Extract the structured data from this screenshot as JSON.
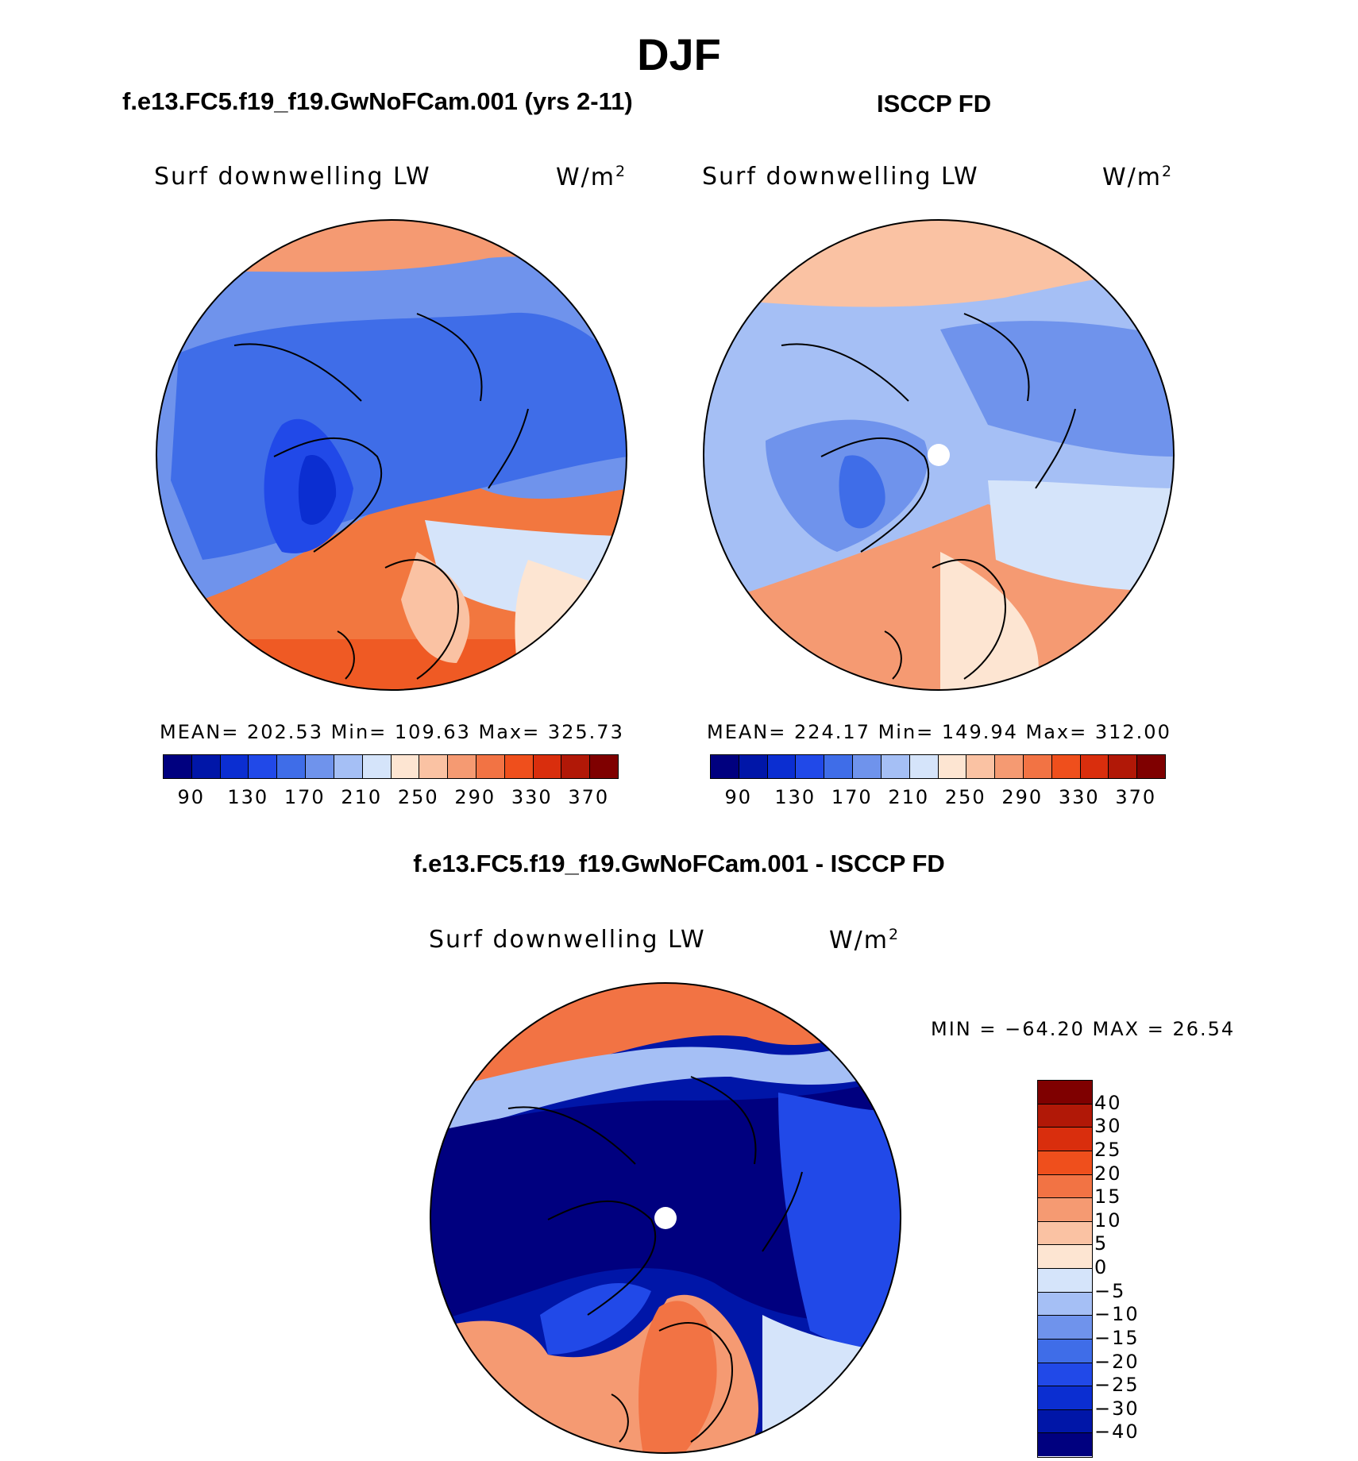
{
  "figure": {
    "season": "DJF",
    "left_title": "f.e13.FC5.f19_f19.GwNoFCam.001 (yrs 2-11)",
    "right_title": "ISCCP FD",
    "diff_title": "f.e13.FC5.f19_f19.GwNoFCam.001 - ISCCP FD"
  },
  "panels": {
    "model": {
      "variable": "Surf downwelling LW",
      "units": "W/m",
      "units_exp": "2",
      "stats": "MEAN= 202.53   Min= 109.63   Max= 325.73"
    },
    "obs": {
      "variable": "Surf downwelling LW",
      "units": "W/m",
      "units_exp": "2",
      "stats": "MEAN= 224.17   Min= 149.94   Max= 312.00"
    },
    "diff": {
      "variable": "Surf downwelling LW",
      "units": "W/m",
      "units_exp": "2",
      "stats": "MIN = −64.20 MAX =   26.54"
    }
  },
  "colorbars": {
    "abs_colors": [
      "#00007f",
      "#0016a8",
      "#0b2ed1",
      "#2149e8",
      "#3f6de8",
      "#6f93ec",
      "#a5bff5",
      "#d5e4fa",
      "#fde5d2",
      "#fac2a3",
      "#f59a72",
      "#f27344",
      "#ef4f1c",
      "#d92e0d",
      "#b11807",
      "#7f0000"
    ],
    "abs_ticks": [
      "90",
      "130",
      "170",
      "210",
      "250",
      "290",
      "330",
      "370"
    ],
    "diff_colors": [
      "#00007f",
      "#0016a8",
      "#0b2ed1",
      "#2149e8",
      "#3f6de8",
      "#6f93ec",
      "#a5bff5",
      "#d5e4fa",
      "#fde5d2",
      "#fac2a3",
      "#f59a72",
      "#f27344",
      "#ef4f1c",
      "#d92e0d",
      "#b11807",
      "#7f0000"
    ],
    "diff_ticks": [
      "40",
      "30",
      "25",
      "20",
      "15",
      "10",
      "5",
      "0",
      "−5",
      "−10",
      "−15",
      "−20",
      "−25",
      "−30",
      "−40"
    ]
  }
}
